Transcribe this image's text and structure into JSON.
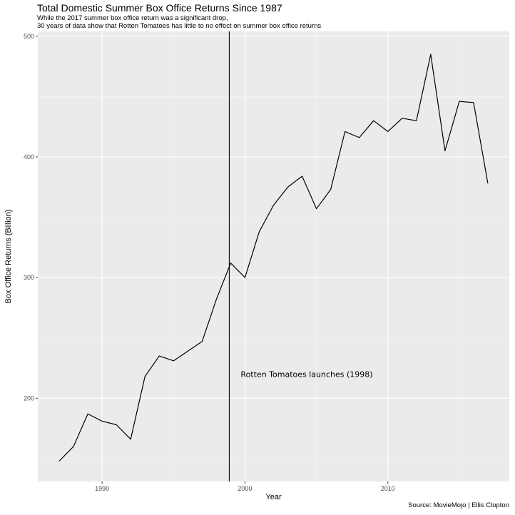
{
  "chart_data": {
    "type": "line",
    "title": "Total Domestic Summer Box Office Returns Since 1987",
    "subtitle_lines": [
      "While the 2017 summer box office return was a significant drop,",
      "30 years of data show that Rotten Tomatoes has little to no effect on summer box office returns"
    ],
    "caption": "Source: MovieMojo | Ellis Clopton",
    "xlabel": "Year",
    "ylabel": "Box Office Returns (Billion)",
    "xlim": [
      1985.5,
      2018.5
    ],
    "ylim": [
      131,
      504
    ],
    "x_ticks": [
      1990,
      2000,
      2010
    ],
    "x_tick_labels": [
      "1990",
      "2000",
      "2010"
    ],
    "y_ticks": [
      200,
      300,
      400,
      500
    ],
    "y_tick_labels": [
      "200",
      "300",
      "400",
      "500"
    ],
    "grid": true,
    "background": "#ebebeb",
    "line_color": "#000000",
    "x": [
      1987,
      1988,
      1989,
      1990,
      1991,
      1992,
      1993,
      1994,
      1995,
      1996,
      1997,
      1998,
      1999,
      2000,
      2001,
      2002,
      2003,
      2004,
      2005,
      2006,
      2007,
      2008,
      2009,
      2010,
      2011,
      2012,
      2013,
      2014,
      2015,
      2016,
      2017
    ],
    "y": [
      148,
      160,
      187,
      181,
      178,
      166,
      218,
      235,
      231,
      239,
      247,
      282,
      312,
      300,
      338,
      360,
      375,
      384,
      357,
      373,
      421,
      416,
      430,
      421,
      432,
      430,
      485,
      405,
      446,
      445,
      378
    ],
    "annotations": [
      {
        "type": "vline",
        "x": 1998.9,
        "color": "#000000"
      },
      {
        "type": "text",
        "x": 1999.7,
        "y": 220,
        "text": "Rotten Tomatoes launches (1998)"
      }
    ]
  }
}
